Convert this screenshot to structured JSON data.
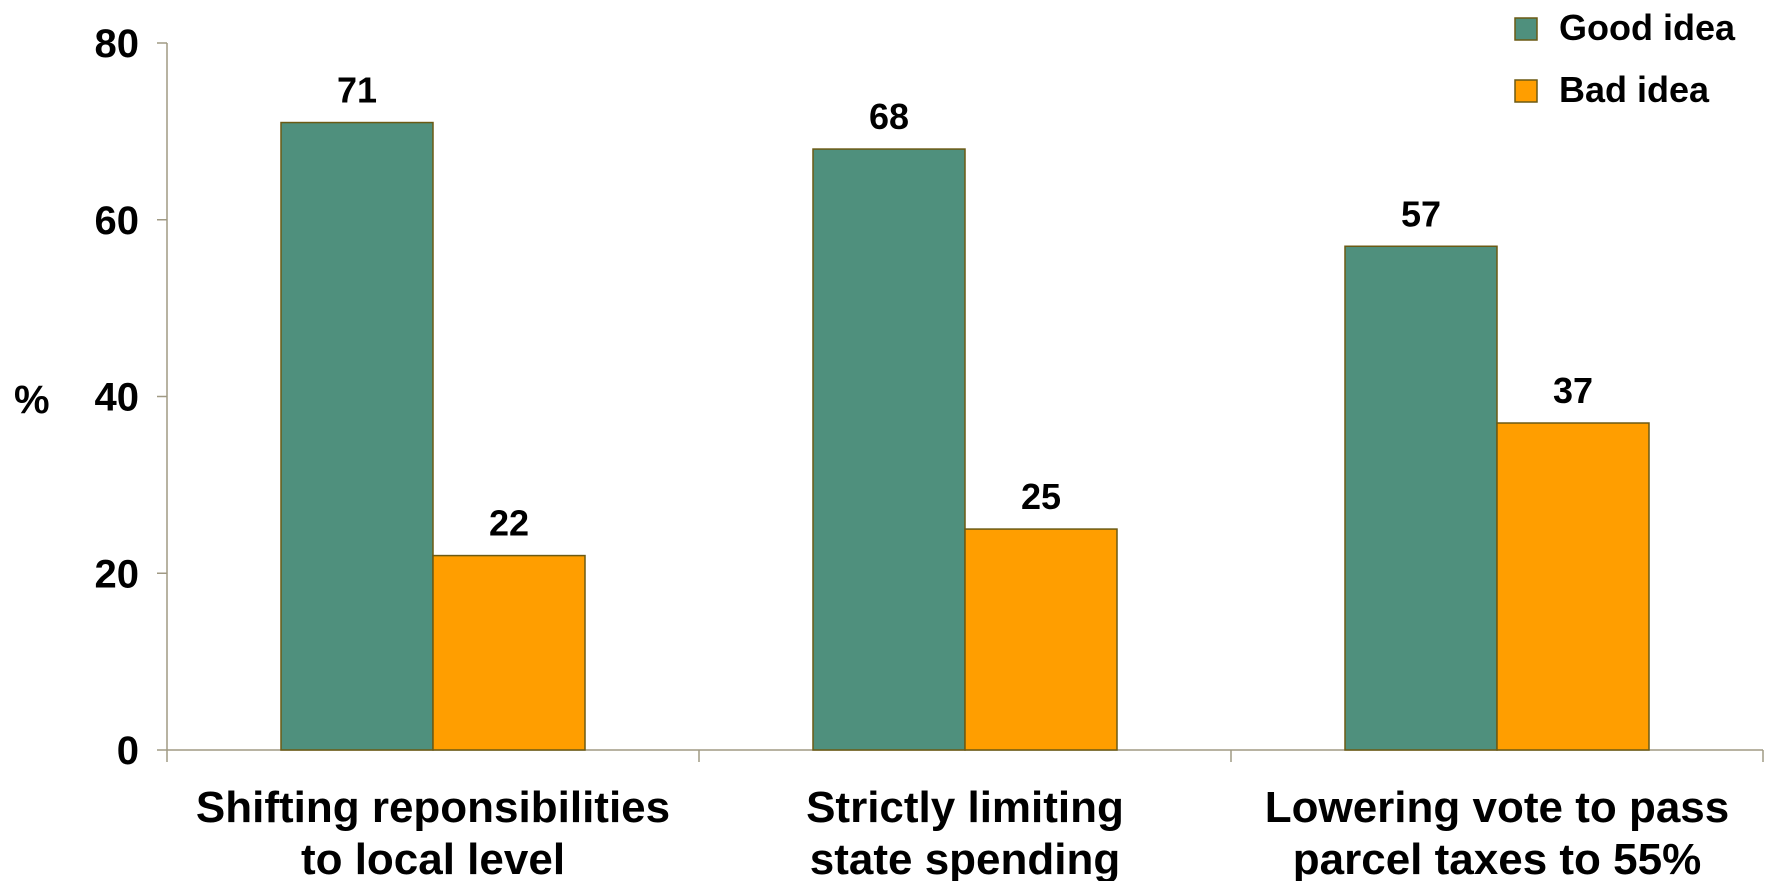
{
  "chart_data": {
    "type": "bar",
    "categories": [
      [
        "Shifting reponsibilities",
        "to local level"
      ],
      [
        "Strictly limiting",
        "state spending"
      ],
      [
        "Lowering vote to pass",
        "parcel taxes to 55%"
      ]
    ],
    "series": [
      {
        "name": "Good idea",
        "values": [
          71,
          68,
          57
        ],
        "color": "#4f907d"
      },
      {
        "name": "Bad idea",
        "values": [
          22,
          25,
          37
        ],
        "color": "#ff9e00"
      }
    ],
    "ylabel": "%",
    "xlabel": "",
    "ylim": [
      0,
      80
    ],
    "yticks": [
      0,
      20,
      40,
      60,
      80
    ],
    "grid": false,
    "legend_position": "top-right",
    "axis_color": "#a09a84",
    "bar_border_color": "#6b5a14"
  }
}
